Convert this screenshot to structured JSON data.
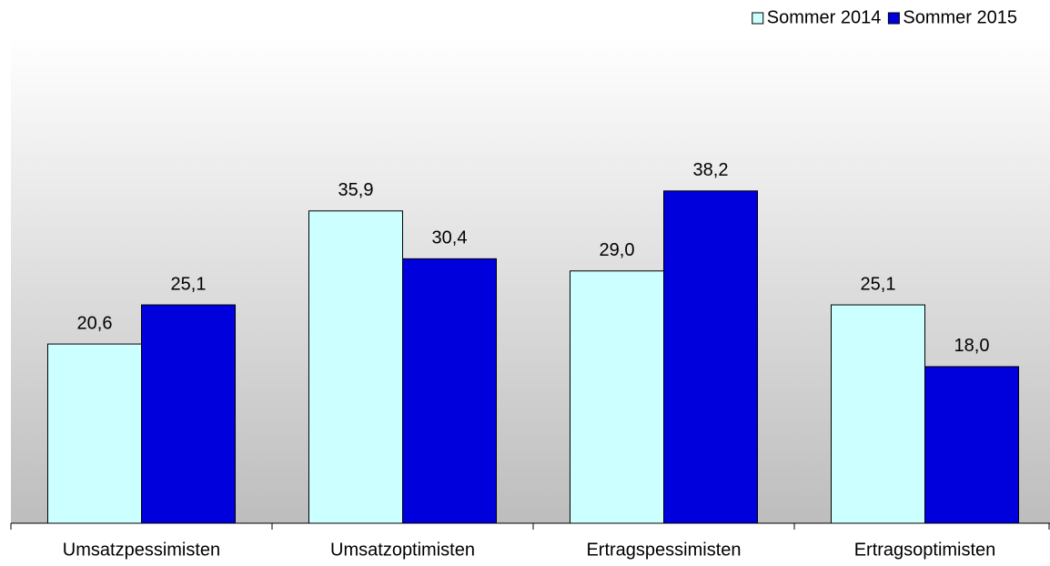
{
  "chart_data": {
    "type": "bar",
    "categories": [
      "Umsatzpessimisten",
      "Umsatzoptimisten",
      "Ertragspessimisten",
      "Ertragsoptimisten"
    ],
    "series": [
      {
        "name": "Sommer 2014",
        "color": "#ccffff",
        "values": [
          20.6,
          35.9,
          29.0,
          25.1
        ],
        "value_labels": [
          "20,6",
          "35,9",
          "29,0",
          "25,1"
        ]
      },
      {
        "name": "Sommer 2015",
        "color": "#0000dd",
        "values": [
          25.1,
          30.4,
          38.2,
          18.0
        ],
        "value_labels": [
          "25,1",
          "30,4",
          "38,2",
          "18,0"
        ]
      }
    ],
    "ylim": [
      0,
      50
    ],
    "legend": "top-right"
  }
}
